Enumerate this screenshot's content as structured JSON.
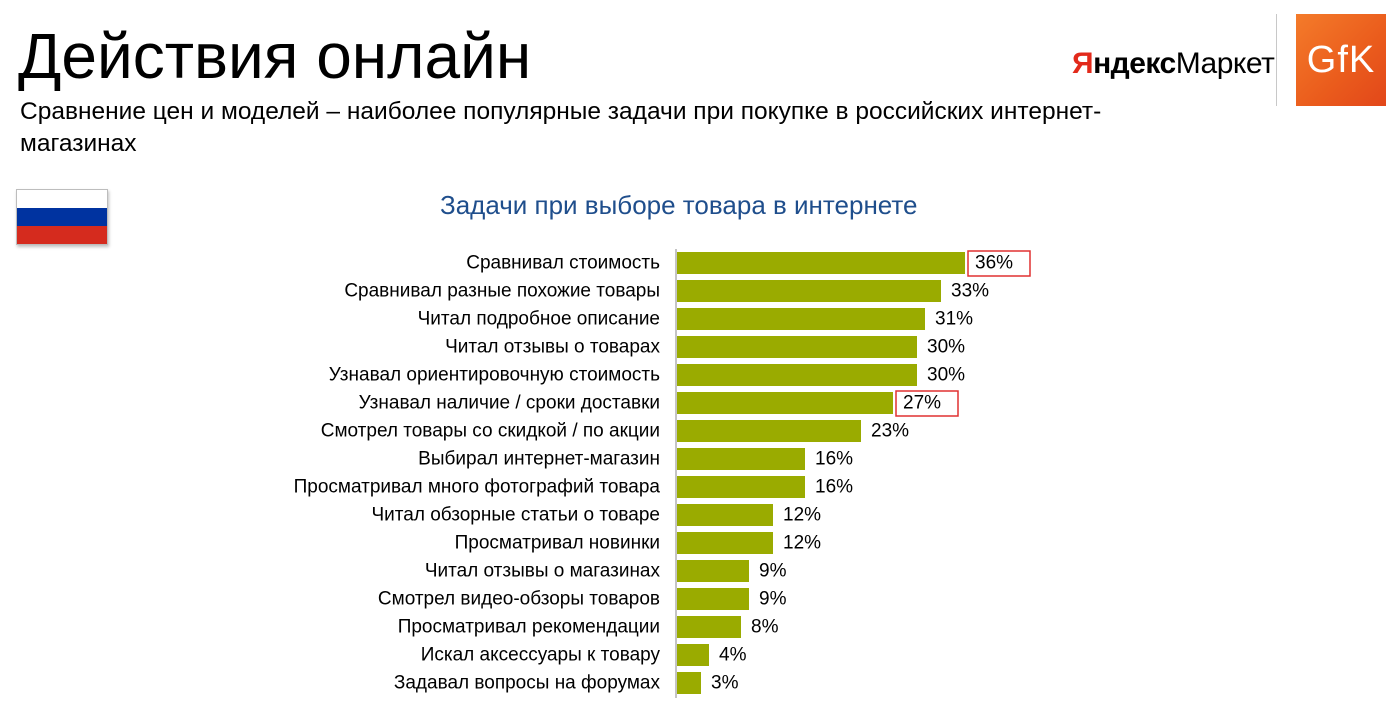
{
  "header": {
    "title": "Действия онлайн",
    "subtitle": "Сравнение цен и моделей – наиболее популярные задачи при покупке в российских интернет-магазинах"
  },
  "logos": {
    "yandex_part1": "Я",
    "yandex_part2": "ндекс",
    "yandex_part3": "Маркет",
    "gfk": "GfK",
    "gfk_color": "#ec6120",
    "yandex_color": "#e22a1b"
  },
  "flag": {
    "country": "Russia",
    "colors": [
      "#ffffff",
      "#0033a0",
      "#d52b1e"
    ]
  },
  "chart_data": {
    "type": "bar",
    "orientation": "horizontal",
    "title": "Задачи при выборе товара в интернете",
    "categories": [
      "Сравнивал стоимость",
      "Сравнивал разные похожие товары",
      "Читал подробное описание",
      "Читал отзывы о товарах",
      "Узнавал ориентировочную стоимость",
      "Узнавал наличие / сроки доставки",
      "Смотрел товары со скидкой / по акции",
      "Выбирал интернет-магазин",
      "Просматривал много фотографий товара",
      "Читал обзорные статьи о товаре",
      "Просматривал новинки",
      "Читал отзывы о магазинах",
      "Смотрел видео-обзоры товаров",
      "Просматривал рекомендации",
      "Искал аксессуары к товару",
      "Задавал вопросы на форумах"
    ],
    "values": [
      36,
      33,
      31,
      30,
      30,
      27,
      23,
      16,
      16,
      12,
      12,
      9,
      9,
      8,
      4,
      3
    ],
    "labels": [
      "36%",
      "33%",
      "31%",
      "30%",
      "30%",
      "27%",
      "23%",
      "16%",
      "16%",
      "12%",
      "12%",
      "9%",
      "9%",
      "8%",
      "4%",
      "3%"
    ],
    "highlighted": [
      0,
      5
    ],
    "bar_color": "#9aab00",
    "highlight_color": "#e03030",
    "xlim": [
      0,
      36
    ],
    "grid": false,
    "legend": "none"
  }
}
